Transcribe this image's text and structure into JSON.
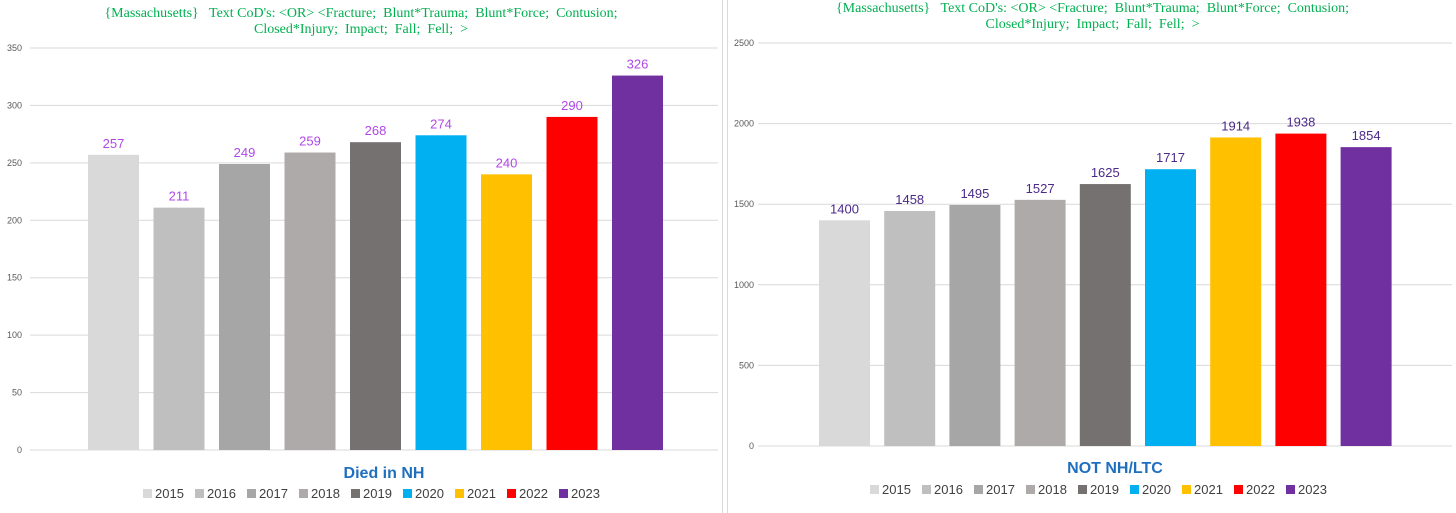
{
  "chart_data": [
    {
      "type": "bar",
      "title_lines": [
        "{Massachusetts}   Text CoD's: <OR> <Fracture;  Blunt*Trauma;  Blunt*Force;  Contusion;",
        "Closed*Injury;  Impact;  Fall;  Fell;  >"
      ],
      "categories": [
        "2015",
        "2016",
        "2017",
        "2018",
        "2019",
        "2020",
        "2021",
        "2022",
        "2023"
      ],
      "values": [
        257,
        211,
        249,
        259,
        268,
        274,
        240,
        290,
        326
      ],
      "colors": [
        "#d9d9d9",
        "#bfbfbf",
        "#a6a6a6",
        "#aeaaaa",
        "#767171",
        "#00b0f0",
        "#ffc000",
        "#ff0000",
        "#7030a0"
      ],
      "label_color": "#b048e8",
      "xlabel": "Died in NH",
      "ylabel": "",
      "ylim": [
        0,
        350
      ],
      "yticks": [
        0,
        50,
        100,
        150,
        200,
        250,
        300,
        350
      ],
      "grid": true,
      "legend": [
        "2015",
        "2016",
        "2017",
        "2018",
        "2019",
        "2020",
        "2021",
        "2022",
        "2023"
      ],
      "legend_position": "bottom"
    },
    {
      "type": "bar",
      "title_lines": [
        "{Massachusetts}   Text CoD's: <OR> <Fracture;  Blunt*Trauma;  Blunt*Force;  Contusion;",
        "Closed*Injury;  Impact;  Fall;  Fell;  >"
      ],
      "categories": [
        "2015",
        "2016",
        "2017",
        "2018",
        "2019",
        "2020",
        "2021",
        "2022",
        "2023"
      ],
      "values": [
        1400,
        1458,
        1495,
        1527,
        1625,
        1717,
        1914,
        1938,
        1854
      ],
      "colors": [
        "#d9d9d9",
        "#bfbfbf",
        "#a6a6a6",
        "#aeaaaa",
        "#767171",
        "#00b0f0",
        "#ffc000",
        "#ff0000",
        "#7030a0"
      ],
      "label_color": "#4b2a8a",
      "xlabel": "NOT NH/LTC",
      "ylabel": "",
      "ylim": [
        0,
        2500
      ],
      "yticks": [
        0,
        500,
        1000,
        1500,
        2000,
        2500
      ],
      "grid": true,
      "legend": [
        "2015",
        "2016",
        "2017",
        "2018",
        "2019",
        "2020",
        "2021",
        "2022",
        "2023"
      ],
      "legend_position": "bottom"
    }
  ]
}
